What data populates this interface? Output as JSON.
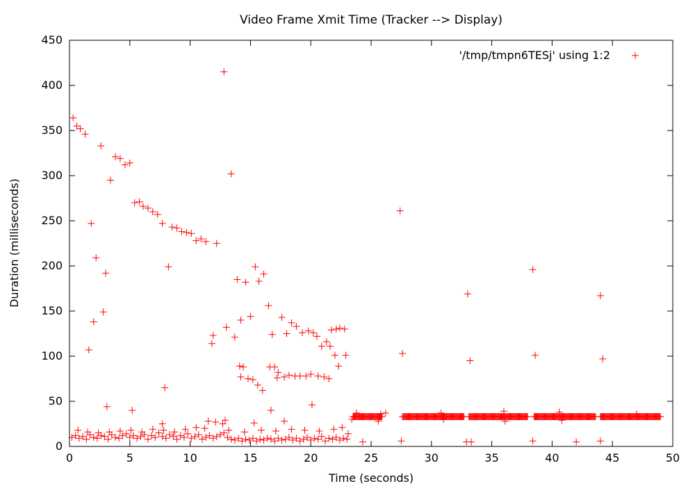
{
  "chart_data": {
    "type": "scatter",
    "title": "Video Frame Xmit Time (Tracker --> Display)",
    "xlabel": "Time (seconds)",
    "ylabel": "Duration (milliseconds)",
    "xlim": [
      0,
      50
    ],
    "ylim": [
      0,
      450
    ],
    "xticks": [
      0,
      5,
      10,
      15,
      20,
      25,
      30,
      35,
      40,
      45,
      50
    ],
    "yticks": [
      0,
      50,
      100,
      150,
      200,
      250,
      300,
      350,
      400,
      450
    ],
    "grid": false,
    "legend_position": "top-right",
    "marker": "+",
    "series": [
      {
        "name": "'/tmp/tmpn6TESj' using 1:2",
        "color": "#ff0000",
        "points": [
          [
            0.3,
            364
          ],
          [
            0.6,
            355
          ],
          [
            0.9,
            352
          ],
          [
            1.3,
            346
          ],
          [
            1.6,
            107
          ],
          [
            1.8,
            247
          ],
          [
            2.0,
            138
          ],
          [
            2.2,
            209
          ],
          [
            2.6,
            333
          ],
          [
            2.8,
            149
          ],
          [
            3.0,
            192
          ],
          [
            3.1,
            44
          ],
          [
            3.4,
            295
          ],
          [
            3.8,
            321
          ],
          [
            4.2,
            319
          ],
          [
            4.6,
            312
          ],
          [
            5.0,
            314
          ],
          [
            5.2,
            40
          ],
          [
            5.4,
            270
          ],
          [
            5.8,
            271
          ],
          [
            6.1,
            266
          ],
          [
            6.5,
            264
          ],
          [
            6.9,
            260
          ],
          [
            7.3,
            257
          ],
          [
            7.7,
            247
          ],
          [
            7.9,
            65
          ],
          [
            8.2,
            199
          ],
          [
            8.5,
            243
          ],
          [
            8.9,
            242
          ],
          [
            9.3,
            238
          ],
          [
            9.7,
            237
          ],
          [
            10.1,
            236
          ],
          [
            10.5,
            228
          ],
          [
            10.9,
            230
          ],
          [
            11.3,
            227
          ],
          [
            11.8,
            114
          ],
          [
            11.9,
            123
          ],
          [
            12.2,
            225
          ],
          [
            12.8,
            415
          ],
          [
            13.0,
            132
          ],
          [
            13.4,
            302
          ],
          [
            13.7,
            121
          ],
          [
            13.9,
            185
          ],
          [
            14.1,
            89
          ],
          [
            14.2,
            140
          ],
          [
            14.2,
            77
          ],
          [
            14.4,
            88
          ],
          [
            14.6,
            182
          ],
          [
            14.8,
            75
          ],
          [
            15.0,
            144
          ],
          [
            15.2,
            74
          ],
          [
            15.4,
            199
          ],
          [
            15.6,
            68
          ],
          [
            15.7,
            183
          ],
          [
            16.0,
            62
          ],
          [
            16.1,
            191
          ],
          [
            16.5,
            156
          ],
          [
            16.6,
            88
          ],
          [
            16.8,
            124
          ],
          [
            17.0,
            88
          ],
          [
            17.2,
            76
          ],
          [
            17.3,
            82
          ],
          [
            17.6,
            143
          ],
          [
            17.8,
            77
          ],
          [
            18.0,
            125
          ],
          [
            18.2,
            79
          ],
          [
            18.4,
            137
          ],
          [
            18.7,
            78
          ],
          [
            18.8,
            133
          ],
          [
            19.1,
            78
          ],
          [
            19.3,
            126
          ],
          [
            19.6,
            78
          ],
          [
            19.8,
            128
          ],
          [
            20.0,
            80
          ],
          [
            20.1,
            46
          ],
          [
            20.2,
            126
          ],
          [
            20.5,
            122
          ],
          [
            20.6,
            78
          ],
          [
            20.9,
            111
          ],
          [
            21.1,
            77
          ],
          [
            21.3,
            116
          ],
          [
            21.5,
            75
          ],
          [
            21.6,
            111
          ],
          [
            21.7,
            129
          ],
          [
            22.0,
            101
          ],
          [
            22.1,
            130
          ],
          [
            22.3,
            89
          ],
          [
            22.4,
            131
          ],
          [
            22.8,
            130
          ],
          [
            22.9,
            101
          ],
          [
            27.4,
            261
          ],
          [
            27.6,
            103
          ],
          [
            33.0,
            169
          ],
          [
            33.2,
            95
          ],
          [
            38.4,
            196
          ],
          [
            38.6,
            101
          ],
          [
            44.0,
            167
          ],
          [
            44.2,
            97
          ],
          [
            16.7,
            40
          ],
          [
            17.8,
            28
          ],
          [
            15.3,
            26
          ],
          [
            12.7,
            25
          ],
          [
            12.9,
            29
          ],
          [
            7.7,
            25
          ],
          [
            0.2,
            10
          ],
          [
            0.5,
            12
          ],
          [
            0.8,
            9
          ],
          [
            1.1,
            11
          ],
          [
            1.4,
            8
          ],
          [
            1.7,
            13
          ],
          [
            2.0,
            10
          ],
          [
            2.3,
            9
          ],
          [
            2.6,
            12
          ],
          [
            2.9,
            11
          ],
          [
            3.2,
            8
          ],
          [
            3.5,
            13
          ],
          [
            3.8,
            10
          ],
          [
            4.1,
            9
          ],
          [
            4.4,
            12
          ],
          [
            4.7,
            14
          ],
          [
            5.0,
            10
          ],
          [
            5.3,
            12
          ],
          [
            5.6,
            9
          ],
          [
            5.9,
            11
          ],
          [
            6.2,
            13
          ],
          [
            6.5,
            8
          ],
          [
            6.8,
            12
          ],
          [
            7.1,
            10
          ],
          [
            7.4,
            15
          ],
          [
            7.7,
            11
          ],
          [
            8.0,
            9
          ],
          [
            8.3,
            13
          ],
          [
            8.6,
            11
          ],
          [
            8.9,
            8
          ],
          [
            9.2,
            12
          ],
          [
            9.5,
            10
          ],
          [
            9.8,
            14
          ],
          [
            10.1,
            9
          ],
          [
            10.4,
            11
          ],
          [
            10.7,
            13
          ],
          [
            11.0,
            8
          ],
          [
            11.3,
            10
          ],
          [
            11.6,
            12
          ],
          [
            11.9,
            9
          ],
          [
            12.2,
            11
          ],
          [
            12.5,
            13
          ],
          [
            12.8,
            15
          ],
          [
            13.1,
            10
          ],
          [
            13.4,
            8
          ],
          [
            13.7,
            7
          ],
          [
            14.0,
            9
          ],
          [
            14.3,
            6
          ],
          [
            14.6,
            8
          ],
          [
            14.9,
            7
          ],
          [
            15.2,
            9
          ],
          [
            15.5,
            6
          ],
          [
            15.8,
            8
          ],
          [
            16.1,
            7
          ],
          [
            16.4,
            9
          ],
          [
            16.7,
            8
          ],
          [
            17.0,
            6
          ],
          [
            17.3,
            9
          ],
          [
            17.6,
            7
          ],
          [
            17.9,
            8
          ],
          [
            18.2,
            10
          ],
          [
            18.5,
            7
          ],
          [
            18.8,
            9
          ],
          [
            19.1,
            6
          ],
          [
            19.4,
            8
          ],
          [
            19.7,
            10
          ],
          [
            20.0,
            7
          ],
          [
            20.3,
            9
          ],
          [
            20.6,
            8
          ],
          [
            20.9,
            11
          ],
          [
            21.2,
            6
          ],
          [
            21.5,
            9
          ],
          [
            21.8,
            8
          ],
          [
            22.1,
            10
          ],
          [
            22.4,
            7
          ],
          [
            22.7,
            9
          ],
          [
            23.0,
            8
          ],
          [
            0.7,
            18
          ],
          [
            1.5,
            16
          ],
          [
            2.4,
            15
          ],
          [
            3.3,
            16
          ],
          [
            4.2,
            17
          ],
          [
            5.1,
            18
          ],
          [
            6.0,
            16
          ],
          [
            6.9,
            19
          ],
          [
            7.8,
            18
          ],
          [
            8.7,
            16
          ],
          [
            9.6,
            19
          ],
          [
            10.5,
            21
          ],
          [
            11.2,
            20
          ],
          [
            11.5,
            28
          ],
          [
            12.1,
            27
          ],
          [
            13.2,
            18
          ],
          [
            14.5,
            16
          ],
          [
            15.9,
            18
          ],
          [
            17.1,
            17
          ],
          [
            18.4,
            19
          ],
          [
            19.5,
            18
          ],
          [
            20.7,
            17
          ],
          [
            21.9,
            19
          ],
          [
            22.6,
            21
          ],
          [
            23.1,
            14
          ],
          [
            23.4,
            30
          ],
          [
            23.6,
            33
          ],
          [
            23.8,
            37
          ],
          [
            24.0,
            33
          ],
          [
            24.3,
            5
          ],
          [
            25.6,
            28
          ],
          [
            25.8,
            36
          ],
          [
            26.2,
            37
          ],
          [
            27.5,
            6
          ],
          [
            30.8,
            37
          ],
          [
            31.0,
            30
          ],
          [
            32.9,
            5
          ],
          [
            33.3,
            5
          ],
          [
            36.0,
            39
          ],
          [
            36.1,
            28
          ],
          [
            38.4,
            6
          ],
          [
            40.6,
            38
          ],
          [
            40.8,
            29
          ],
          [
            42.0,
            5
          ],
          [
            44.0,
            6
          ],
          [
            47.0,
            36
          ],
          [
            48.8,
            33
          ]
        ],
        "bands": [
          {
            "x_start": 23.5,
            "x_end": 25.9,
            "y": 33
          },
          {
            "x_start": 27.6,
            "x_end": 32.7,
            "y": 33
          },
          {
            "x_start": 33.1,
            "x_end": 38.0,
            "y": 33
          },
          {
            "x_start": 38.5,
            "x_end": 43.6,
            "y": 33
          },
          {
            "x_start": 44.0,
            "x_end": 49.0,
            "y": 33
          }
        ]
      }
    ]
  }
}
